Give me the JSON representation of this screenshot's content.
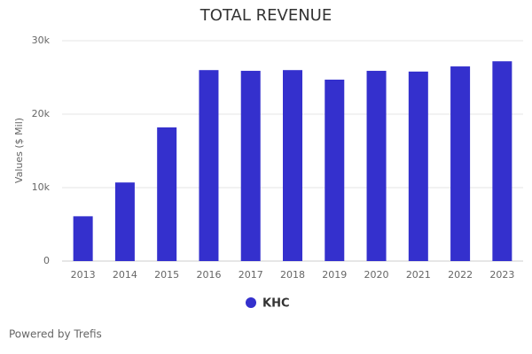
{
  "chart_data": {
    "type": "bar",
    "title": "TOTAL REVENUE",
    "y_label": "Values ($ Mil)",
    "categories": [
      "2013",
      "2014",
      "2015",
      "2016",
      "2017",
      "2018",
      "2019",
      "2020",
      "2021",
      "2022",
      "2023"
    ],
    "series": [
      {
        "name": "KHC",
        "color": "#3430cd",
        "values": [
          6100,
          10700,
          18200,
          26000,
          25900,
          26000,
          24700,
          25900,
          25800,
          26500,
          27200
        ]
      }
    ],
    "ylim": [
      0,
      30000
    ],
    "yticks": [
      0,
      {
        "value": 10000,
        "label": "10k"
      },
      {
        "value": 20000,
        "label": "20k"
      },
      {
        "value": 30000,
        "label": "30k"
      }
    ],
    "grid": true,
    "credit": "Powered by Trefis"
  }
}
